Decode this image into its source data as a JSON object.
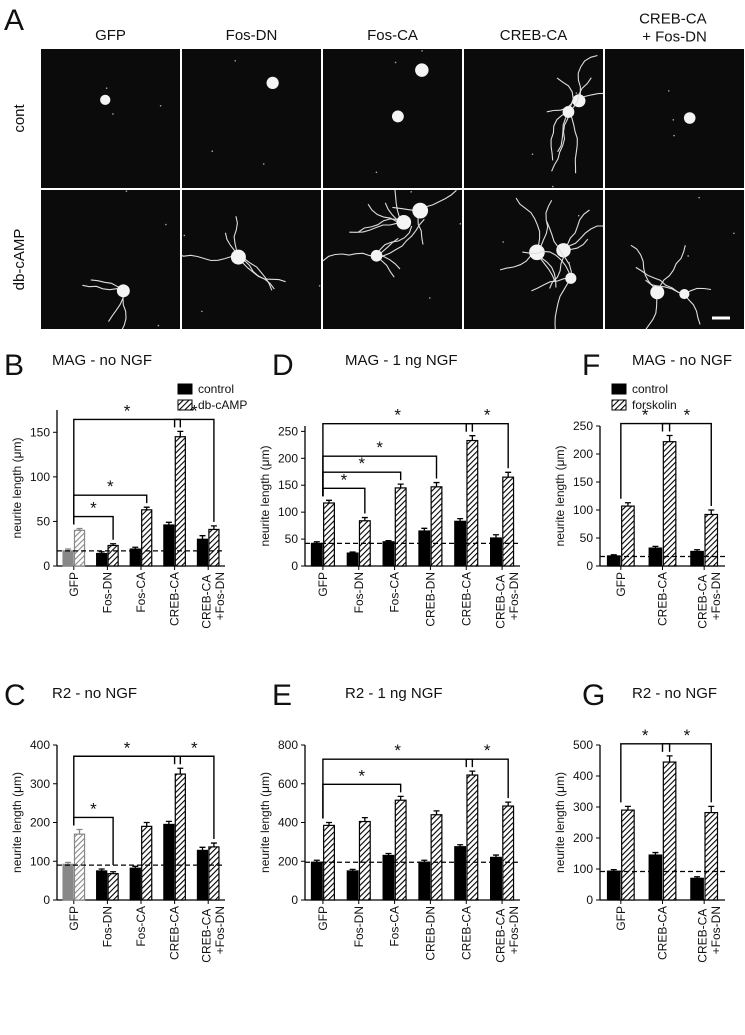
{
  "image_panel": {
    "label": "A",
    "columns": [
      "GFP",
      "Fos-DN",
      "Fos-CA",
      "CREB-CA",
      "CREB-CA + Fos-DN"
    ],
    "rows": [
      "cont",
      "db-cAMP"
    ]
  },
  "chart_data": [
    {
      "type": "bar",
      "label": "B",
      "title": "MAG - no NGF",
      "y_label": "neurite length (μm)",
      "categories": [
        "GFP",
        "Fos-DN",
        "Fos-CA",
        "CREB-CA",
        "CREB-CA +Fos-DN"
      ],
      "series": [
        {
          "name": "control",
          "color": "#000000",
          "hatch": false,
          "values": [
            17,
            14,
            19,
            46,
            30
          ],
          "errors": [
            2,
            2,
            2,
            3,
            4
          ]
        },
        {
          "name": "db-cAMP",
          "color": "#000000",
          "hatch": true,
          "values": [
            40,
            23,
            63,
            145,
            41
          ],
          "errors": [
            2,
            2,
            3,
            6,
            4
          ]
        }
      ],
      "first_category_color": "#888888",
      "baseline": 17,
      "legend": true,
      "ylim": [
        0,
        175
      ],
      "yticks": [
        0,
        50,
        100,
        150
      ],
      "comparisons": [
        {
          "groups": [
            "GFP",
            "Fos-DN"
          ],
          "label": "*"
        },
        {
          "groups": [
            "GFP",
            "Fos-CA"
          ],
          "label": "*"
        },
        {
          "groups": [
            "GFP",
            "CREB-CA"
          ],
          "label": "*"
        },
        {
          "groups": [
            "CREB-CA",
            "CREB-CA +Fos-DN"
          ],
          "label": "*"
        }
      ]
    },
    {
      "type": "bar",
      "label": "D",
      "title": "MAG - 1 ng NGF",
      "y_label": "neurite length (μm)",
      "categories": [
        "GFP",
        "Fos-DN",
        "Fos-CA",
        "CREB-DN",
        "CREB-CA",
        "CREB-CA +Fos-DN"
      ],
      "series": [
        {
          "color": "#000000",
          "hatch": false,
          "values": [
            42,
            24,
            45,
            65,
            83,
            52
          ],
          "errors": [
            3,
            2,
            2,
            5,
            5,
            6
          ]
        },
        {
          "color": "#000000",
          "hatch": true,
          "values": [
            117,
            84,
            145,
            147,
            233,
            165
          ],
          "errors": [
            5,
            6,
            7,
            8,
            9,
            9
          ]
        }
      ],
      "baseline": 42,
      "legend": false,
      "ylim": [
        0,
        260
      ],
      "yticks": [
        0,
        50,
        100,
        150,
        200,
        250
      ],
      "comparisons": [
        {
          "groups": [
            "GFP",
            "Fos-DN"
          ],
          "label": "*"
        },
        {
          "groups": [
            "GFP",
            "Fos-CA"
          ],
          "label": "*"
        },
        {
          "groups": [
            "GFP",
            "CREB-DN"
          ],
          "label": "*"
        },
        {
          "groups": [
            "GFP",
            "CREB-CA"
          ],
          "label": "*"
        },
        {
          "groups": [
            "CREB-CA",
            "CREB-CA +Fos-DN"
          ],
          "label": "*"
        }
      ]
    },
    {
      "type": "bar",
      "label": "F",
      "title": "MAG - no NGF",
      "y_label": "neurite length (μm)",
      "categories": [
        "GFP",
        "CREB-CA",
        "CREB-CA +Fos-DN"
      ],
      "series": [
        {
          "name": "control",
          "color": "#000000",
          "hatch": false,
          "values": [
            18,
            32,
            26
          ],
          "errors": [
            2,
            3,
            3
          ]
        },
        {
          "name": "forskolin",
          "color": "#000000",
          "hatch": true,
          "values": [
            107,
            222,
            92
          ],
          "errors": [
            6,
            11,
            8
          ]
        }
      ],
      "baseline": 17,
      "legend": true,
      "ylim": [
        0,
        250
      ],
      "yticks": [
        0,
        50,
        100,
        150,
        200,
        250
      ],
      "comparisons": [
        {
          "groups": [
            "GFP",
            "CREB-CA"
          ],
          "label": "*"
        },
        {
          "groups": [
            "CREB-CA",
            "CREB-CA +Fos-DN"
          ],
          "label": "*"
        }
      ]
    },
    {
      "type": "bar",
      "label": "C",
      "title": "R2 - no NGF",
      "y_label": "neurite length (μm)",
      "categories": [
        "GFP",
        "Fos-DN",
        "Fos-CA",
        "CREB-CA",
        "CREB-CA +Fos-DN"
      ],
      "series": [
        {
          "color": "#000000",
          "hatch": false,
          "values": [
            92,
            75,
            82,
            195,
            128
          ],
          "errors": [
            5,
            5,
            5,
            8,
            8
          ]
        },
        {
          "color": "#000000",
          "hatch": true,
          "values": [
            170,
            68,
            190,
            325,
            137
          ],
          "errors": [
            12,
            5,
            10,
            15,
            10
          ]
        }
      ],
      "first_category_color": "#888888",
      "baseline": 90,
      "legend": false,
      "ylim": [
        0,
        400
      ],
      "yticks": [
        0,
        100,
        200,
        300,
        400
      ],
      "comparisons": [
        {
          "groups": [
            "GFP",
            "Fos-DN"
          ],
          "label": "*"
        },
        {
          "groups": [
            "GFP",
            "CREB-CA"
          ],
          "label": "*"
        },
        {
          "groups": [
            "CREB-CA",
            "CREB-CA +Fos-DN"
          ],
          "label": "*"
        }
      ]
    },
    {
      "type": "bar",
      "label": "E",
      "title": "R2 - 1 ng NGF",
      "y_label": "neurite length (μm)",
      "categories": [
        "GFP",
        "Fos-DN",
        "Fos-CA",
        "CREB-DN",
        "CREB-CA",
        "CREB-CA +Fos-DN"
      ],
      "series": [
        {
          "color": "#000000",
          "hatch": false,
          "values": [
            195,
            150,
            230,
            195,
            275,
            220
          ],
          "errors": [
            10,
            8,
            10,
            10,
            10,
            12
          ]
        },
        {
          "color": "#000000",
          "hatch": true,
          "values": [
            385,
            405,
            515,
            440,
            645,
            485
          ],
          "errors": [
            15,
            20,
            20,
            20,
            20,
            20
          ]
        }
      ],
      "baseline": 195,
      "legend": false,
      "ylim": [
        0,
        800
      ],
      "yticks": [
        0,
        200,
        400,
        600,
        800
      ],
      "comparisons": [
        {
          "groups": [
            "GFP",
            "Fos-CA"
          ],
          "label": "*"
        },
        {
          "groups": [
            "GFP",
            "CREB-CA"
          ],
          "label": "*"
        },
        {
          "groups": [
            "CREB-CA",
            "CREB-CA +Fos-DN"
          ],
          "label": "*"
        }
      ]
    },
    {
      "type": "bar",
      "label": "G",
      "title": "R2 - no NGF",
      "y_label": "neurite length (μm)",
      "categories": [
        "GFP",
        "CREB-CA",
        "CREB-CA +Fos-DN"
      ],
      "series": [
        {
          "color": "#000000",
          "hatch": false,
          "values": [
            93,
            145,
            70
          ],
          "errors": [
            5,
            8,
            5
          ]
        },
        {
          "color": "#000000",
          "hatch": true,
          "values": [
            290,
            445,
            282
          ],
          "errors": [
            12,
            20,
            20
          ]
        }
      ],
      "baseline": 92,
      "legend": false,
      "ylim": [
        0,
        500
      ],
      "yticks": [
        0,
        100,
        200,
        300,
        400,
        500
      ],
      "comparisons": [
        {
          "groups": [
            "GFP",
            "CREB-CA"
          ],
          "label": "*"
        },
        {
          "groups": [
            "CREB-CA",
            "CREB-CA +Fos-DN"
          ],
          "label": "*"
        }
      ]
    }
  ]
}
